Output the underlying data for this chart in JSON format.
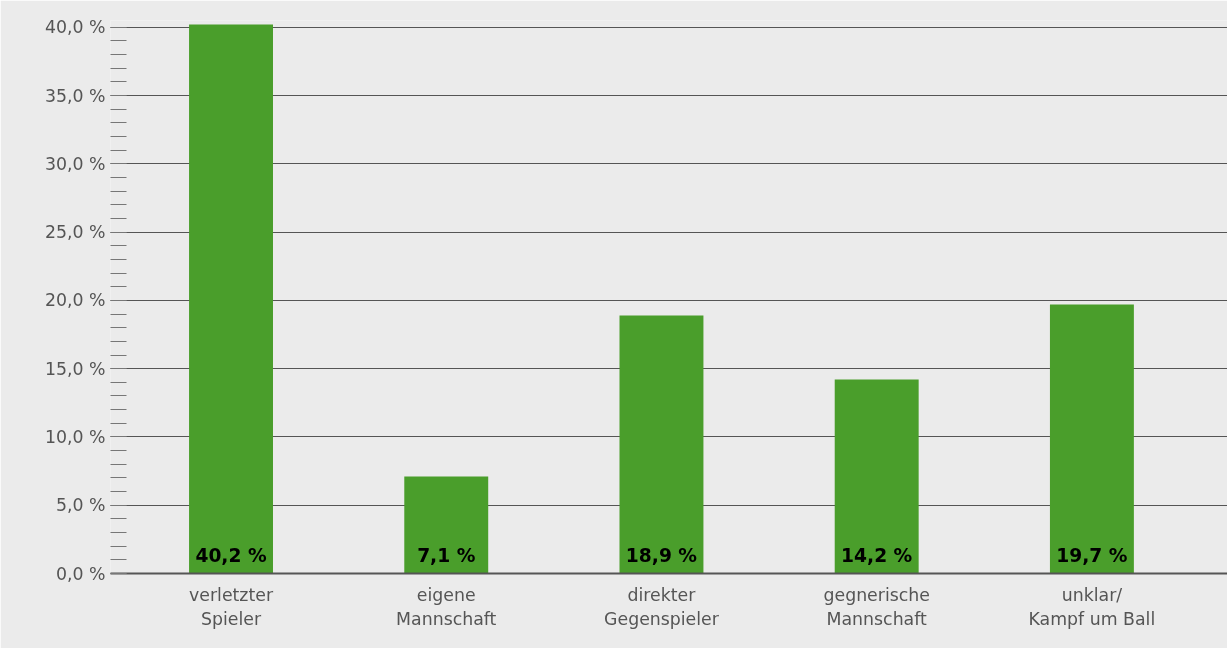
{
  "chart_data": {
    "type": "bar",
    "categories": [
      "verletzter\nSpieler",
      "eigene\nMannschaft",
      "direkter\nGegenspieler",
      "gegnerische\nMannschaft",
      "unklar/\nKampf um Ball"
    ],
    "values": [
      40.2,
      7.1,
      18.9,
      14.2,
      19.7
    ],
    "value_labels": [
      "40,2 %",
      "7,1 %",
      "18,9 %",
      "14,2 %",
      "19,7 %"
    ],
    "color": "#4a9e2b",
    "ylim": [
      0,
      40.5
    ],
    "yticks": [
      {
        "value": 0,
        "label": "0,0 %"
      },
      {
        "value": 5,
        "label": "5,0 %"
      },
      {
        "value": 10,
        "label": "10,0 %"
      },
      {
        "value": 15,
        "label": "15,0 %"
      },
      {
        "value": 20,
        "label": "20,0 %"
      },
      {
        "value": 25,
        "label": "25,0 %"
      },
      {
        "value": 30,
        "label": "30,0 %"
      },
      {
        "value": 35,
        "label": "35,0 %"
      },
      {
        "value": 40,
        "label": "40,0 %"
      }
    ],
    "grid": "y"
  }
}
